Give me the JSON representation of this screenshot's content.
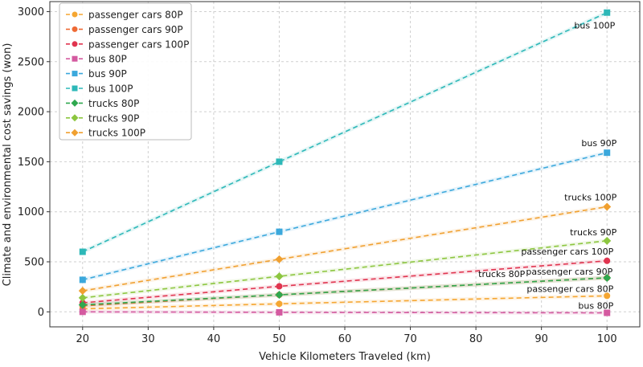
{
  "chart_data": {
    "type": "line",
    "title": "",
    "xlabel": "Vehicle Kilometers Traveled (km)",
    "ylabel": "Climate and environmental cost savings (won)",
    "xlim": [
      15,
      105
    ],
    "ylim": [
      -150,
      3100
    ],
    "x_ticks": [
      20,
      30,
      40,
      50,
      60,
      70,
      80,
      90,
      100
    ],
    "y_ticks": [
      0,
      500,
      1000,
      1500,
      2000,
      2500,
      3000
    ],
    "grid": true,
    "legend_position": "top-left",
    "x": [
      20,
      50,
      100
    ],
    "series": [
      {
        "name": "passenger cars 80P",
        "values": [
          30,
          80,
          160
        ],
        "color": "#F5A631",
        "marker": "circle",
        "end_label": "passenger cars 80P"
      },
      {
        "name": "passenger cars 90P",
        "values": [
          60,
          170,
          340
        ],
        "color": "#EE6A35",
        "marker": "circle",
        "end_label": "passenger cars 90P"
      },
      {
        "name": "passenger cars 100P",
        "values": [
          90,
          255,
          510
        ],
        "color": "#E0344F",
        "marker": "circle",
        "end_label": "passenger cars 100P"
      },
      {
        "name": "bus 80P",
        "values": [
          0,
          -5,
          -10
        ],
        "color": "#D45AA0",
        "marker": "square",
        "end_label": "bus 80P"
      },
      {
        "name": "bus 90P",
        "values": [
          320,
          800,
          1590
        ],
        "color": "#3BA8DC",
        "marker": "square",
        "end_label": "bus 90P"
      },
      {
        "name": "bus 100P",
        "values": [
          600,
          1500,
          2990
        ],
        "color": "#2DB8B8",
        "marker": "square",
        "end_label": "bus 100P"
      },
      {
        "name": "trucks 80P",
        "values": [
          70,
          170,
          340
        ],
        "color": "#2FA84F",
        "marker": "diamond",
        "end_label": "trucks 80P"
      },
      {
        "name": "trucks 90P",
        "values": [
          140,
          355,
          710
        ],
        "color": "#8CC63F",
        "marker": "diamond",
        "end_label": "trucks 90P"
      },
      {
        "name": "trucks 100P",
        "values": [
          210,
          525,
          1050
        ],
        "color": "#F0A030",
        "marker": "diamond",
        "end_label": "trucks 100P"
      }
    ]
  }
}
